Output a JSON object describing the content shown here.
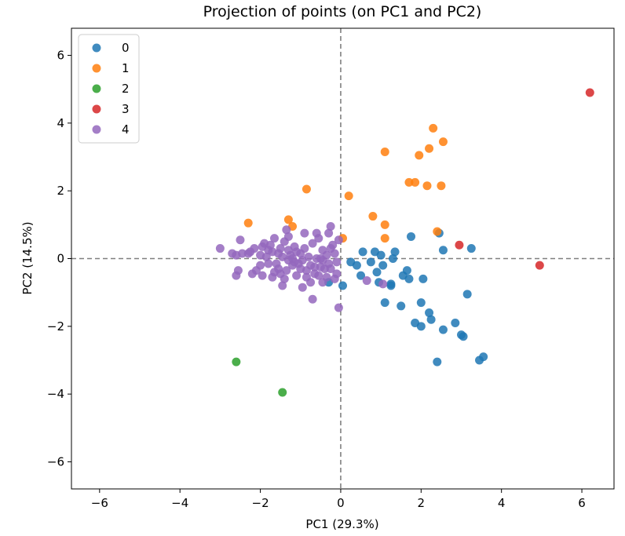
{
  "chart_data": {
    "type": "scatter",
    "title": "Projection of points (on PC1 and PC2)",
    "xlabel": "PC1 (29.3%)",
    "ylabel": "PC2 (14.5%)",
    "xlim": [
      -6.7,
      6.8
    ],
    "ylim": [
      -6.8,
      6.8
    ],
    "xticks": [
      -6,
      -4,
      -2,
      0,
      2,
      4,
      6
    ],
    "yticks": [
      -6,
      -4,
      -2,
      0,
      2,
      4,
      6
    ],
    "xtick_labels": [
      "−6",
      "−4",
      "−2",
      "0",
      "2",
      "4",
      "6"
    ],
    "ytick_labels": [
      "−6",
      "−4",
      "−2",
      "0",
      "2",
      "4",
      "6"
    ],
    "reference_lines": {
      "x": 0,
      "y": 0,
      "style": "dashed",
      "color": "#808080"
    },
    "grid": false,
    "legend_position": "top-left",
    "series": [
      {
        "name": "0",
        "color": "#1f77b4",
        "points": [
          [
            1.75,
            0.65
          ],
          [
            2.45,
            0.75
          ],
          [
            2.55,
            0.25
          ],
          [
            3.25,
            0.3
          ],
          [
            0.55,
            0.2
          ],
          [
            0.85,
            0.2
          ],
          [
            1.0,
            0.1
          ],
          [
            1.35,
            0.2
          ],
          [
            1.3,
            0.0
          ],
          [
            0.25,
            -0.1
          ],
          [
            0.4,
            -0.2
          ],
          [
            0.5,
            -0.5
          ],
          [
            0.95,
            -0.7
          ],
          [
            1.25,
            -0.8
          ],
          [
            1.55,
            -0.5
          ],
          [
            1.7,
            -0.6
          ],
          [
            2.05,
            -0.6
          ],
          [
            1.65,
            -0.35
          ],
          [
            -0.3,
            -0.7
          ],
          [
            0.05,
            -0.8
          ],
          [
            1.1,
            -1.3
          ],
          [
            1.5,
            -1.4
          ],
          [
            2.0,
            -1.3
          ],
          [
            2.2,
            -1.6
          ],
          [
            1.85,
            -1.9
          ],
          [
            2.0,
            -2.0
          ],
          [
            2.25,
            -1.8
          ],
          [
            2.55,
            -2.1
          ],
          [
            2.85,
            -1.9
          ],
          [
            3.0,
            -2.25
          ],
          [
            3.05,
            -2.3
          ],
          [
            3.15,
            -1.05
          ],
          [
            3.45,
            -3.0
          ],
          [
            3.55,
            -2.9
          ],
          [
            2.4,
            -3.05
          ],
          [
            1.25,
            -0.75
          ],
          [
            0.75,
            -0.1
          ],
          [
            0.9,
            -0.4
          ],
          [
            1.05,
            -0.2
          ]
        ]
      },
      {
        "name": "1",
        "color": "#ff7f0e",
        "points": [
          [
            2.3,
            3.85
          ],
          [
            2.55,
            3.45
          ],
          [
            2.2,
            3.25
          ],
          [
            1.95,
            3.05
          ],
          [
            1.1,
            3.15
          ],
          [
            1.7,
            2.25
          ],
          [
            1.85,
            2.25
          ],
          [
            2.15,
            2.15
          ],
          [
            2.5,
            2.15
          ],
          [
            0.2,
            1.85
          ],
          [
            -0.85,
            2.05
          ],
          [
            0.8,
            1.25
          ],
          [
            1.1,
            1.0
          ],
          [
            2.4,
            0.8
          ],
          [
            1.1,
            0.6
          ],
          [
            0.05,
            0.6
          ],
          [
            -1.3,
            1.15
          ],
          [
            -1.2,
            0.95
          ],
          [
            -2.3,
            1.05
          ]
        ]
      },
      {
        "name": "2",
        "color": "#2ca02c",
        "points": [
          [
            -2.6,
            -3.05
          ],
          [
            -1.45,
            -3.95
          ]
        ]
      },
      {
        "name": "3",
        "color": "#d62728",
        "points": [
          [
            6.2,
            4.9
          ],
          [
            2.95,
            0.4
          ],
          [
            4.95,
            -0.2
          ]
        ]
      },
      {
        "name": "4",
        "color": "#9467bd",
        "points": [
          [
            -3.0,
            0.3
          ],
          [
            -2.7,
            0.15
          ],
          [
            -2.6,
            0.1
          ],
          [
            -2.5,
            0.55
          ],
          [
            -2.45,
            0.15
          ],
          [
            -2.6,
            -0.5
          ],
          [
            -2.55,
            -0.35
          ],
          [
            -2.2,
            -0.45
          ],
          [
            -2.25,
            0.2
          ],
          [
            -2.15,
            0.3
          ],
          [
            -2.0,
            0.1
          ],
          [
            -1.95,
            0.35
          ],
          [
            -1.9,
            0.45
          ],
          [
            -1.8,
            0.25
          ],
          [
            -1.75,
            0.4
          ],
          [
            -1.7,
            0.2
          ],
          [
            -1.65,
            0.6
          ],
          [
            -1.55,
            0.15
          ],
          [
            -1.5,
            0.3
          ],
          [
            -1.45,
            0.05
          ],
          [
            -1.4,
            0.5
          ],
          [
            -1.35,
            0.85
          ],
          [
            -1.3,
            0.25
          ],
          [
            -1.25,
            0.1
          ],
          [
            -1.2,
            0.0
          ],
          [
            -1.15,
            0.35
          ],
          [
            -1.1,
            0.2
          ],
          [
            -1.05,
            -0.15
          ],
          [
            -1.0,
            0.15
          ],
          [
            -0.95,
            -0.05
          ],
          [
            -0.9,
            0.3
          ],
          [
            -0.85,
            -0.35
          ],
          [
            -0.8,
            0.05
          ],
          [
            -0.75,
            -0.2
          ],
          [
            -0.7,
            0.45
          ],
          [
            -0.65,
            -0.45
          ],
          [
            -0.6,
            0.0
          ],
          [
            -0.55,
            0.6
          ],
          [
            -0.5,
            -0.25
          ],
          [
            -0.45,
            0.25
          ],
          [
            -0.4,
            -0.3
          ],
          [
            -0.35,
            0.1
          ],
          [
            -0.3,
            -0.15
          ],
          [
            -0.25,
            0.95
          ],
          [
            -0.2,
            0.4
          ],
          [
            -0.15,
            0.15
          ],
          [
            -0.1,
            -0.1
          ],
          [
            -0.05,
            0.55
          ],
          [
            -1.95,
            -0.5
          ],
          [
            -1.8,
            -0.15
          ],
          [
            -1.7,
            -0.55
          ],
          [
            -1.55,
            -0.3
          ],
          [
            -1.5,
            -0.45
          ],
          [
            -1.4,
            -0.6
          ],
          [
            -1.35,
            -0.35
          ],
          [
            -1.45,
            -0.8
          ],
          [
            -1.2,
            -0.2
          ],
          [
            -1.1,
            -0.5
          ],
          [
            -0.95,
            -0.85
          ],
          [
            -0.85,
            -0.55
          ],
          [
            -0.65,
            -0.25
          ],
          [
            -0.55,
            -0.5
          ],
          [
            -0.45,
            -0.7
          ],
          [
            -0.35,
            -0.55
          ],
          [
            -0.25,
            -0.3
          ],
          [
            -0.15,
            -0.6
          ],
          [
            -0.1,
            -0.45
          ],
          [
            -0.05,
            -1.45
          ],
          [
            -0.7,
            -1.2
          ],
          [
            -0.6,
            0.75
          ],
          [
            -0.3,
            0.75
          ],
          [
            -1.3,
            0.65
          ],
          [
            -0.9,
            0.75
          ],
          [
            -2.0,
            -0.2
          ],
          [
            -1.85,
            0.05
          ],
          [
            -1.6,
            -0.15
          ],
          [
            -1.15,
            -0.1
          ],
          [
            -0.75,
            -0.7
          ],
          [
            -0.45,
            -0.05
          ],
          [
            0.65,
            -0.65
          ],
          [
            1.05,
            -0.75
          ],
          [
            -0.5,
            0.0
          ],
          [
            -1.3,
            -0.05
          ],
          [
            -1.0,
            -0.3
          ],
          [
            -2.3,
            0.15
          ],
          [
            -2.1,
            -0.35
          ],
          [
            -1.65,
            -0.4
          ],
          [
            -0.25,
            0.3
          ]
        ]
      }
    ]
  }
}
